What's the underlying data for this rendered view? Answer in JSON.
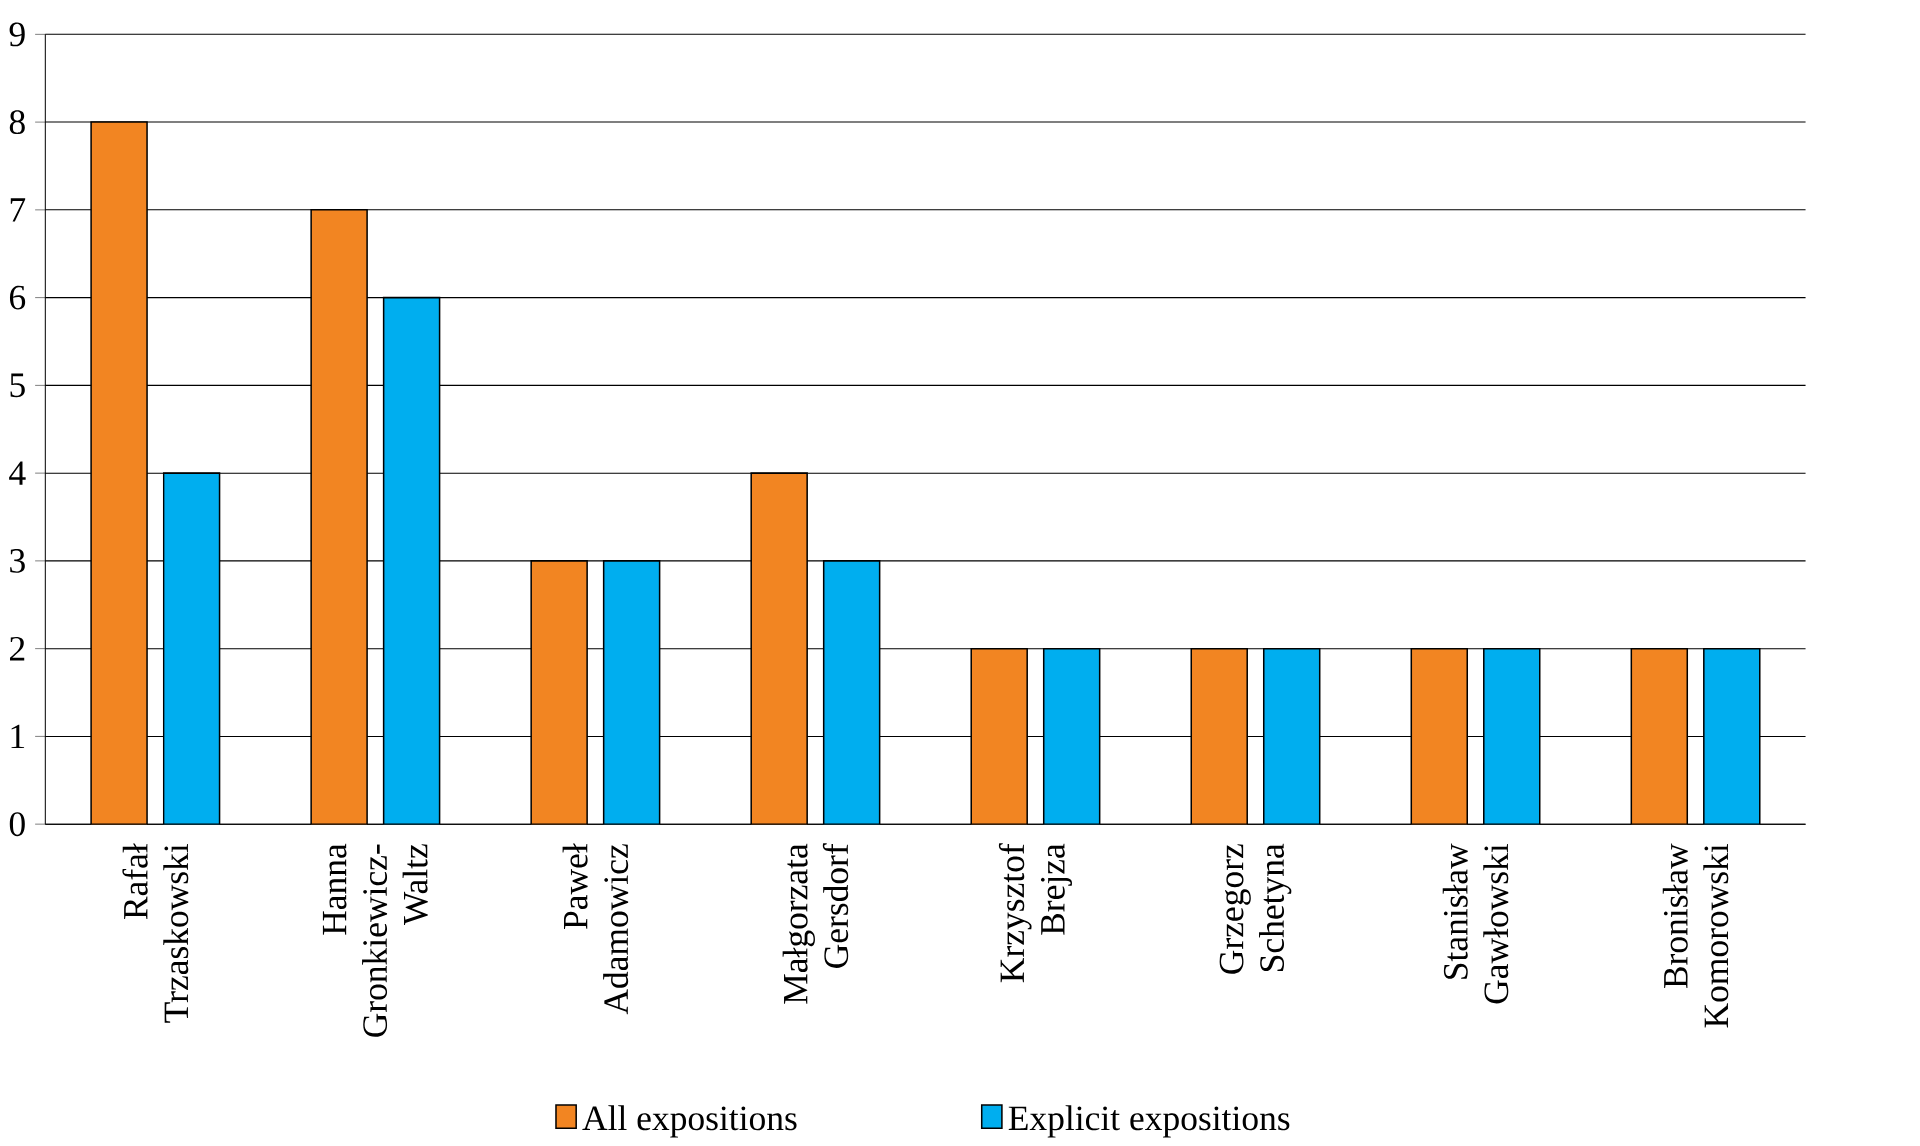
{
  "chart_data": {
    "type": "bar",
    "categories": [
      "Rafał Trzaskowski",
      "Hanna Gronkiewicz-Waltz",
      "Paweł Adamowicz",
      "Małgorzata Gersdorf",
      "Krzysztof Brejza",
      "Grzegorz Schetyna",
      "Stanisław Gawłowski",
      "Bronisław Komorowski"
    ],
    "series": [
      {
        "name": "All expositions",
        "color": "#f28522",
        "values": [
          8,
          7,
          3,
          4,
          2,
          2,
          2,
          2
        ]
      },
      {
        "name": "Explicit expositions",
        "color": "#00aeef",
        "values": [
          4,
          6,
          3,
          3,
          2,
          2,
          2,
          2
        ]
      }
    ],
    "ylim": [
      0,
      9
    ],
    "yticks": [
      0,
      1,
      2,
      3,
      4,
      5,
      6,
      7,
      8,
      9
    ],
    "grid": "y",
    "legend": "bottom"
  }
}
